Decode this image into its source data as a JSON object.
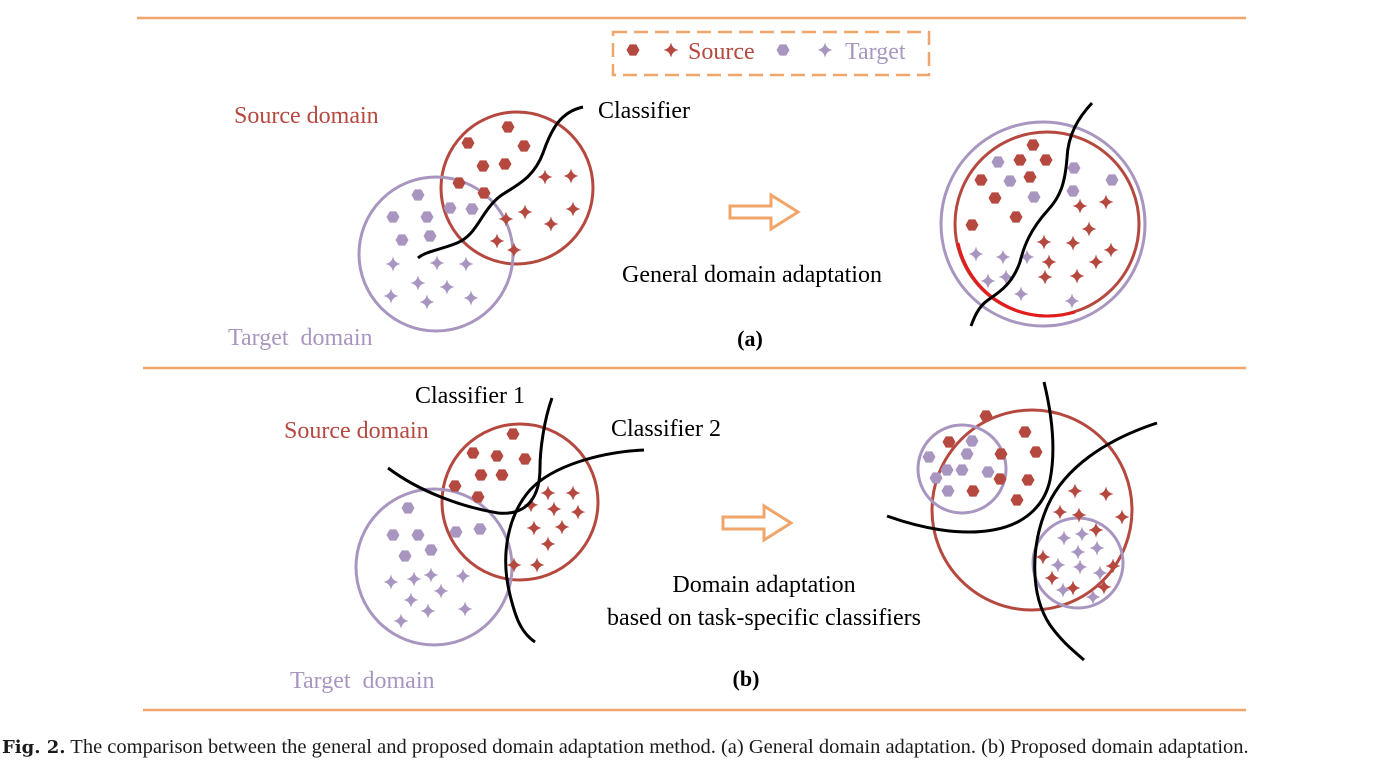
{
  "legend": {
    "source_label": "Source",
    "target_label": "Target"
  },
  "panel_a": {
    "source_domain_label": "Source domain",
    "target_domain_label": "Target domain",
    "classifier_label": "Classifier",
    "method_label": "General domain adaptation",
    "panel_label": "(a)"
  },
  "panel_b": {
    "source_domain_label": "Source domain",
    "target_domain_label": "Target domain",
    "classifier1_label": "Classifier 1",
    "classifier2_label": "Classifier 2",
    "method_label_line1": "Domain adaptation",
    "method_label_line2": "based on task-specific classifiers",
    "panel_label": "(b)"
  },
  "caption": {
    "fig_label": "Fig. 2.",
    "text": "The comparison between the general and proposed domain adaptation method. (a) General domain adaptation. (b) Proposed domain adaptation."
  },
  "colors": {
    "source": "#b5483f",
    "target": "#a996c0",
    "divider": "#f0a56a",
    "arrow": "#f0a56a",
    "classifier": "#000000",
    "highlight": "#e51b1b"
  },
  "icons": {
    "source_sample": "red-hexagon",
    "source_feature": "red-four-point-star",
    "target_sample": "purple-hexagon",
    "target_feature": "purple-four-point-star",
    "arrow": "hollow-right-arrow"
  }
}
